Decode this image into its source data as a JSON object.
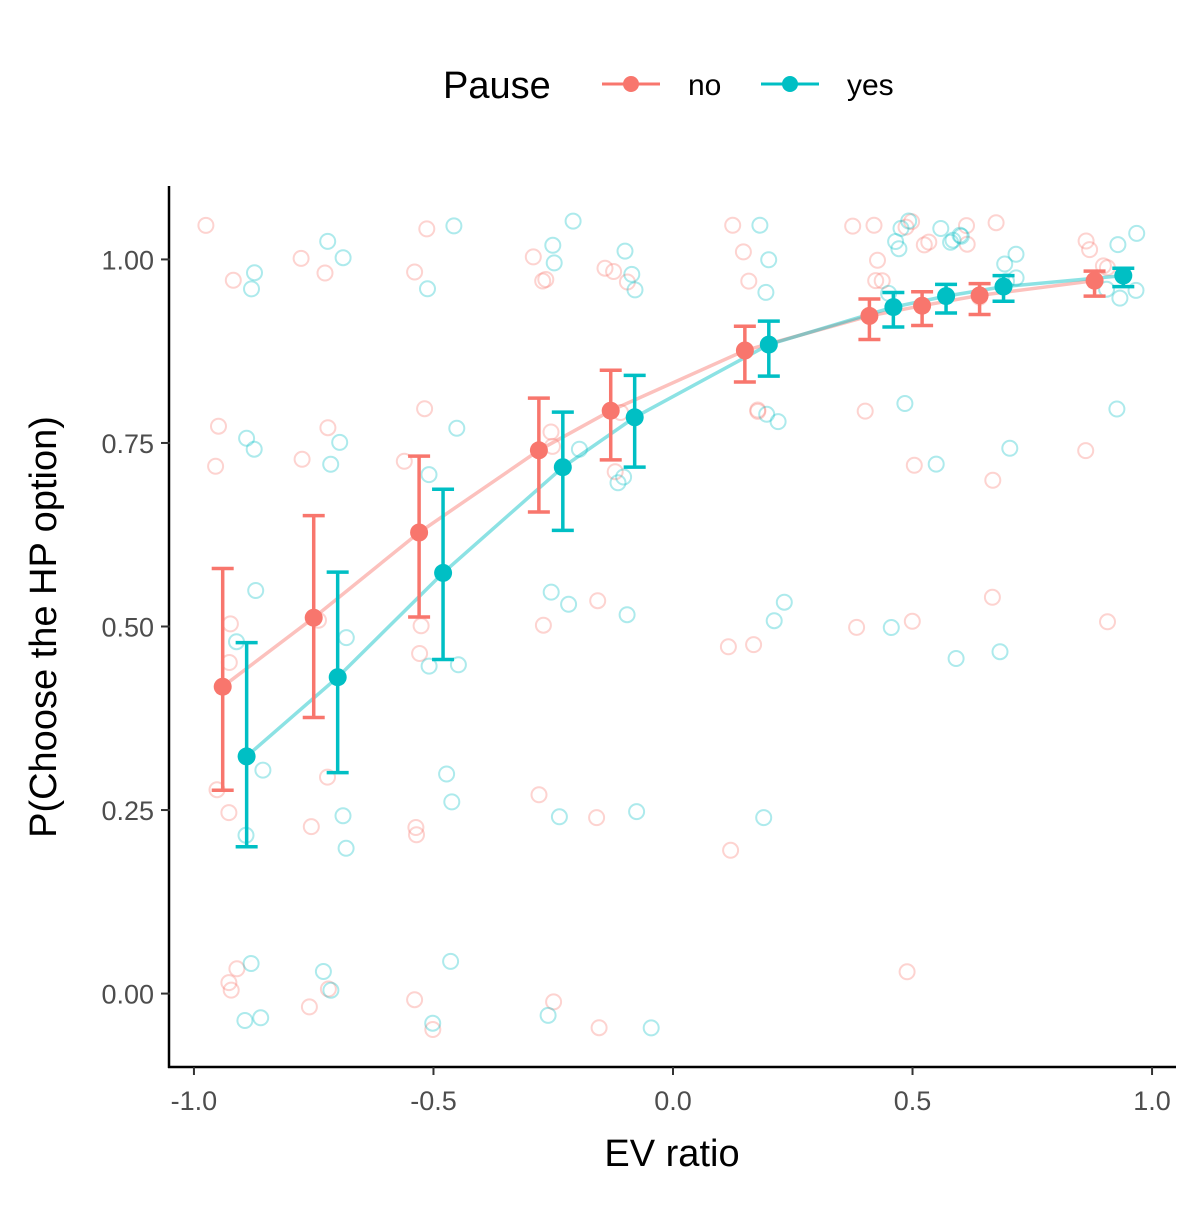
{
  "chart_data": {
    "type": "scatter",
    "xlabel": "EV ratio",
    "ylabel": "P(Choose the HP option)",
    "xlim": [
      -1.05,
      1.05
    ],
    "ylim": [
      -0.1,
      1.1
    ],
    "x_ticks": [
      -1.0,
      -0.5,
      0.0,
      0.5,
      1.0
    ],
    "x_tick_labels": [
      "-1.0",
      "-0.5",
      "0.0",
      "0.5",
      "1.0"
    ],
    "y_ticks": [
      0.0,
      0.25,
      0.5,
      0.75,
      1.0
    ],
    "y_tick_labels": [
      "0.00",
      "0.25",
      "0.50",
      "0.75",
      "1.00"
    ],
    "grid": false,
    "legend": {
      "title": "Pause",
      "placement": "top",
      "entries": [
        "no",
        "yes"
      ]
    },
    "series": [
      {
        "name": "no",
        "color": "#F8766D",
        "x": [
          -0.94,
          -0.75,
          -0.53,
          -0.28,
          -0.13,
          0.15,
          0.41,
          0.52,
          0.64,
          0.88
        ],
        "mean": [
          0.418,
          0.512,
          0.628,
          0.74,
          0.794,
          0.876,
          0.923,
          0.937,
          0.951,
          0.971
        ],
        "lower": [
          0.277,
          0.376,
          0.513,
          0.656,
          0.727,
          0.833,
          0.891,
          0.91,
          0.925,
          0.95
        ],
        "upper": [
          0.579,
          0.651,
          0.732,
          0.811,
          0.849,
          0.909,
          0.946,
          0.956,
          0.967,
          0.984
        ],
        "participant_values": [
          [
            1.0,
            0.75,
            0.5,
            0.25,
            0.0,
            0.0,
            1.0,
            0.75,
            0.5,
            0.25,
            0.0
          ],
          [
            1.0,
            0.75,
            0.5,
            0.25,
            0.0,
            1.0,
            0.75,
            0.25,
            0.0
          ],
          [
            1.0,
            0.75,
            0.5,
            0.25,
            0.0,
            1.0,
            0.75,
            0.5,
            0.25,
            0.0
          ],
          [
            1.0,
            1.0,
            0.75,
            0.75,
            0.5,
            0.25,
            0.0,
            1.0
          ],
          [
            1.0,
            1.0,
            0.75,
            0.5,
            0.25,
            0.0,
            1.0,
            0.75
          ],
          [
            1.0,
            1.0,
            0.75,
            0.75,
            0.5,
            0.5,
            0.25,
            1.0
          ],
          [
            1.0,
            1.0,
            1.0,
            0.75,
            0.5,
            1.0,
            1.0
          ],
          [
            1.0,
            1.0,
            1.0,
            0.75,
            0.5,
            0.0,
            1.0
          ],
          [
            1.0,
            1.0,
            1.0,
            0.75,
            0.5,
            1.0
          ],
          [
            1.0,
            1.0,
            1.0,
            0.75,
            0.5,
            1.0
          ]
        ]
      },
      {
        "name": "yes",
        "color": "#00BFC4",
        "x": [
          -0.89,
          -0.7,
          -0.48,
          -0.23,
          -0.08,
          0.2,
          0.46,
          0.57,
          0.69,
          0.94
        ],
        "mean": [
          0.323,
          0.431,
          0.573,
          0.717,
          0.785,
          0.884,
          0.935,
          0.95,
          0.963,
          0.978
        ],
        "lower": [
          0.2,
          0.301,
          0.455,
          0.631,
          0.717,
          0.841,
          0.908,
          0.927,
          0.943,
          0.963
        ],
        "upper": [
          0.478,
          0.574,
          0.687,
          0.792,
          0.842,
          0.916,
          0.955,
          0.966,
          0.978,
          0.988
        ],
        "participant_values": [
          [
            1.0,
            0.75,
            0.5,
            0.25,
            0.0,
            0.0,
            1.0,
            0.75,
            0.5,
            0.25,
            0.0
          ],
          [
            1.0,
            0.75,
            0.5,
            0.25,
            0.0,
            1.0,
            0.75,
            0.25,
            0.0
          ],
          [
            1.0,
            0.75,
            0.5,
            0.25,
            0.0,
            1.0,
            0.75,
            0.5,
            0.25,
            0.0
          ],
          [
            1.0,
            1.0,
            0.75,
            0.5,
            0.25,
            0.0,
            1.0,
            0.5
          ],
          [
            1.0,
            1.0,
            0.75,
            0.5,
            0.25,
            0.0,
            1.0,
            0.75
          ],
          [
            1.0,
            1.0,
            0.75,
            0.75,
            0.5,
            0.5,
            0.25,
            1.0
          ],
          [
            1.0,
            1.0,
            1.0,
            0.75,
            0.5,
            1.0,
            1.0
          ],
          [
            1.0,
            1.0,
            1.0,
            0.75,
            0.5,
            1.0,
            1.0
          ],
          [
            1.0,
            1.0,
            1.0,
            0.75,
            0.5,
            1.0
          ],
          [
            1.0,
            1.0,
            1.0,
            0.75,
            1.0,
            1.0
          ]
        ]
      }
    ]
  }
}
